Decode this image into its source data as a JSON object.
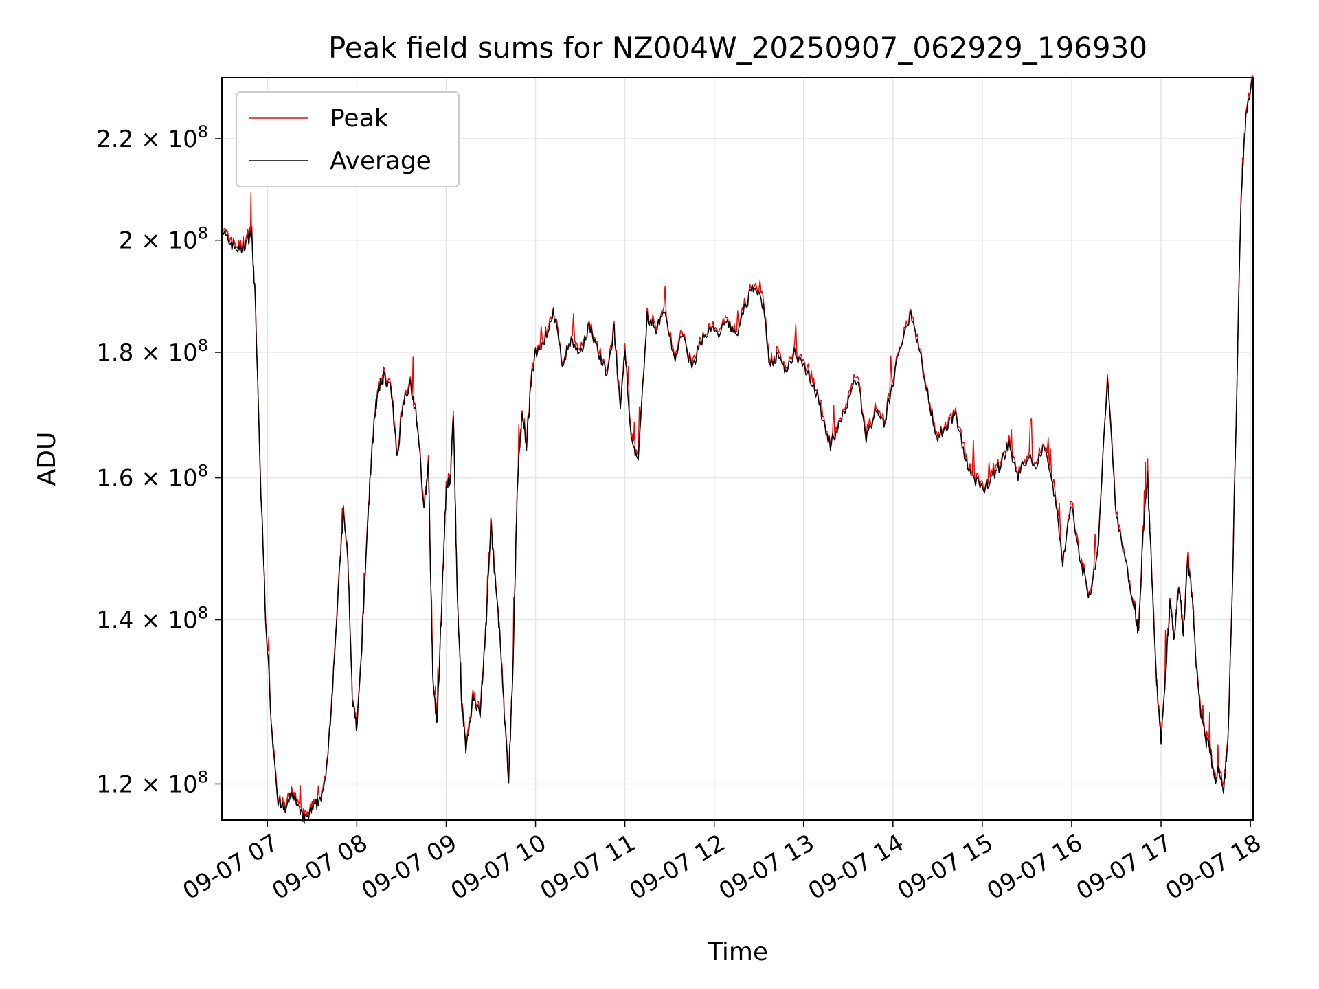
{
  "chart_data": {
    "type": "line",
    "title": "Peak field sums for NZ004W_20250907_062929_196930",
    "xlabel": "Time",
    "ylabel": "ADU",
    "y_scale": "log",
    "grid": true,
    "legend_position": "top-left",
    "x_ticks": [
      "09-07 07",
      "09-07 08",
      "09-07 09",
      "09-07 10",
      "09-07 11",
      "09-07 12",
      "09-07 13",
      "09-07 14",
      "09-07 15",
      "09-07 16",
      "09-07 17",
      "09-07 18"
    ],
    "y_ticks": [
      {
        "value": 120000000,
        "mantissa": "1.2",
        "exponent": "8"
      },
      {
        "value": 140000000,
        "mantissa": "1.4",
        "exponent": "8"
      },
      {
        "value": 160000000,
        "mantissa": "1.6",
        "exponent": "8"
      },
      {
        "value": 180000000,
        "mantissa": "1.8",
        "exponent": "8"
      },
      {
        "value": 200000000,
        "mantissa": "2",
        "exponent": "8"
      },
      {
        "value": 220000000,
        "mantissa": "2.2",
        "exponent": "8"
      }
    ],
    "times_of_day": "hours since midnight on 09-07",
    "x_range_hours": [
      6.49,
      18.03
    ],
    "y_range": [
      116000000,
      233000000
    ],
    "series": [
      {
        "name": "Peak",
        "color": "#ff0000"
      },
      {
        "name": "Average",
        "color": "#000000"
      }
    ],
    "average_points_hours_vs_adu_e8": [
      [
        6.49,
        2.02
      ],
      [
        6.55,
        2.0
      ],
      [
        6.62,
        1.99
      ],
      [
        6.7,
        1.98
      ],
      [
        6.78,
        2.0
      ],
      [
        6.82,
        2.02
      ],
      [
        6.86,
        1.9
      ],
      [
        6.92,
        1.6
      ],
      [
        6.98,
        1.4
      ],
      [
        7.05,
        1.26
      ],
      [
        7.12,
        1.18
      ],
      [
        7.2,
        1.17
      ],
      [
        7.28,
        1.19
      ],
      [
        7.35,
        1.17
      ],
      [
        7.42,
        1.16
      ],
      [
        7.5,
        1.17
      ],
      [
        7.57,
        1.18
      ],
      [
        7.65,
        1.2
      ],
      [
        7.72,
        1.3
      ],
      [
        7.8,
        1.45
      ],
      [
        7.85,
        1.55
      ],
      [
        7.9,
        1.48
      ],
      [
        7.95,
        1.3
      ],
      [
        8.0,
        1.26
      ],
      [
        8.05,
        1.35
      ],
      [
        8.1,
        1.48
      ],
      [
        8.15,
        1.6
      ],
      [
        8.2,
        1.7
      ],
      [
        8.25,
        1.74
      ],
      [
        8.3,
        1.76
      ],
      [
        8.38,
        1.74
      ],
      [
        8.45,
        1.63
      ],
      [
        8.52,
        1.72
      ],
      [
        8.6,
        1.75
      ],
      [
        8.68,
        1.68
      ],
      [
        8.75,
        1.55
      ],
      [
        8.8,
        1.62
      ],
      [
        8.85,
        1.32
      ],
      [
        8.9,
        1.27
      ],
      [
        8.95,
        1.42
      ],
      [
        9.0,
        1.58
      ],
      [
        9.05,
        1.6
      ],
      [
        9.08,
        1.7
      ],
      [
        9.12,
        1.45
      ],
      [
        9.17,
        1.3
      ],
      [
        9.22,
        1.24
      ],
      [
        9.3,
        1.3
      ],
      [
        9.38,
        1.28
      ],
      [
        9.45,
        1.4
      ],
      [
        9.5,
        1.53
      ],
      [
        9.55,
        1.45
      ],
      [
        9.6,
        1.38
      ],
      [
        9.65,
        1.28
      ],
      [
        9.7,
        1.2
      ],
      [
        9.75,
        1.35
      ],
      [
        9.8,
        1.6
      ],
      [
        9.85,
        1.7
      ],
      [
        9.9,
        1.65
      ],
      [
        9.95,
        1.75
      ],
      [
        10.0,
        1.8
      ],
      [
        10.1,
        1.82
      ],
      [
        10.2,
        1.87
      ],
      [
        10.3,
        1.78
      ],
      [
        10.4,
        1.82
      ],
      [
        10.5,
        1.79
      ],
      [
        10.6,
        1.85
      ],
      [
        10.7,
        1.8
      ],
      [
        10.8,
        1.76
      ],
      [
        10.88,
        1.84
      ],
      [
        10.95,
        1.7
      ],
      [
        11.0,
        1.8
      ],
      [
        11.08,
        1.65
      ],
      [
        11.15,
        1.62
      ],
      [
        11.25,
        1.86
      ],
      [
        11.35,
        1.84
      ],
      [
        11.45,
        1.87
      ],
      [
        11.55,
        1.79
      ],
      [
        11.65,
        1.83
      ],
      [
        11.75,
        1.77
      ],
      [
        11.85,
        1.82
      ],
      [
        11.95,
        1.84
      ],
      [
        12.05,
        1.83
      ],
      [
        12.15,
        1.85
      ],
      [
        12.25,
        1.83
      ],
      [
        12.35,
        1.88
      ],
      [
        12.45,
        1.92
      ],
      [
        12.55,
        1.88
      ],
      [
        12.62,
        1.78
      ],
      [
        12.7,
        1.79
      ],
      [
        12.8,
        1.77
      ],
      [
        12.9,
        1.8
      ],
      [
        13.0,
        1.78
      ],
      [
        13.1,
        1.75
      ],
      [
        13.2,
        1.7
      ],
      [
        13.3,
        1.65
      ],
      [
        13.4,
        1.68
      ],
      [
        13.5,
        1.72
      ],
      [
        13.6,
        1.76
      ],
      [
        13.7,
        1.66
      ],
      [
        13.8,
        1.7
      ],
      [
        13.9,
        1.68
      ],
      [
        14.0,
        1.75
      ],
      [
        14.1,
        1.82
      ],
      [
        14.2,
        1.87
      ],
      [
        14.3,
        1.8
      ],
      [
        14.4,
        1.72
      ],
      [
        14.5,
        1.66
      ],
      [
        14.6,
        1.68
      ],
      [
        14.7,
        1.7
      ],
      [
        14.8,
        1.63
      ],
      [
        14.9,
        1.6
      ],
      [
        15.0,
        1.58
      ],
      [
        15.1,
        1.6
      ],
      [
        15.2,
        1.62
      ],
      [
        15.3,
        1.65
      ],
      [
        15.4,
        1.6
      ],
      [
        15.5,
        1.63
      ],
      [
        15.6,
        1.62
      ],
      [
        15.7,
        1.65
      ],
      [
        15.8,
        1.58
      ],
      [
        15.9,
        1.48
      ],
      [
        16.0,
        1.56
      ],
      [
        16.1,
        1.48
      ],
      [
        16.2,
        1.43
      ],
      [
        16.3,
        1.5
      ],
      [
        16.4,
        1.76
      ],
      [
        16.5,
        1.54
      ],
      [
        16.6,
        1.48
      ],
      [
        16.7,
        1.42
      ],
      [
        16.75,
        1.38
      ],
      [
        16.8,
        1.52
      ],
      [
        16.85,
        1.6
      ],
      [
        16.9,
        1.45
      ],
      [
        16.95,
        1.32
      ],
      [
        17.0,
        1.25
      ],
      [
        17.05,
        1.33
      ],
      [
        17.1,
        1.42
      ],
      [
        17.15,
        1.37
      ],
      [
        17.2,
        1.45
      ],
      [
        17.25,
        1.38
      ],
      [
        17.3,
        1.48
      ],
      [
        17.35,
        1.43
      ],
      [
        17.4,
        1.33
      ],
      [
        17.45,
        1.28
      ],
      [
        17.5,
        1.25
      ],
      [
        17.55,
        1.24
      ],
      [
        17.6,
        1.2
      ],
      [
        17.65,
        1.22
      ],
      [
        17.7,
        1.19
      ],
      [
        17.75,
        1.25
      ],
      [
        17.8,
        1.45
      ],
      [
        17.85,
        1.75
      ],
      [
        17.9,
        2.1
      ],
      [
        17.95,
        2.25
      ],
      [
        18.03,
        2.33
      ]
    ]
  }
}
